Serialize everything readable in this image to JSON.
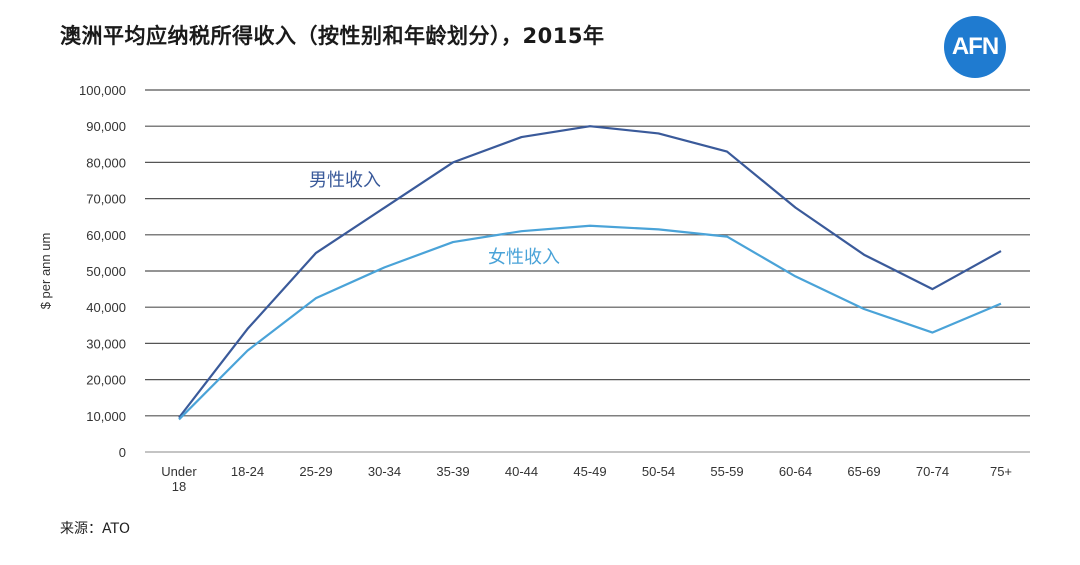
{
  "header": {
    "title": "澳洲平均应纳税所得收入（按性别和年龄划分），2015年",
    "logo_text": "AFN"
  },
  "footer": {
    "source": "来源：ATO"
  },
  "colors": {
    "male": "#3a5a9a",
    "female": "#4aa3d8",
    "grid": "#555555",
    "logo": "#1f7bd0"
  },
  "chart_data": {
    "type": "line",
    "title": "澳洲平均应纳税所得收入（按性别和年龄划分），2015年",
    "xlabel": "",
    "ylabel": "$ per ann um",
    "ylim": [
      0,
      100000
    ],
    "grid": true,
    "categories": [
      [
        "Under",
        "18"
      ],
      [
        "18-24"
      ],
      [
        "25-29"
      ],
      [
        "30-34"
      ],
      [
        "35-39"
      ],
      [
        "40-44"
      ],
      [
        "45-49"
      ],
      [
        "50-54"
      ],
      [
        "55-59"
      ],
      [
        "60-64"
      ],
      [
        "65-69"
      ],
      [
        "70-74"
      ],
      [
        "75+"
      ]
    ],
    "y_ticks": [
      "0",
      "10,000",
      "20,000",
      "30,000",
      "40,000",
      "50,000",
      "60,000",
      "70,000",
      "80,000",
      "90,000",
      "100,000"
    ],
    "series": [
      {
        "name": "男性收入",
        "color": "#3a5a9a",
        "values": [
          9500,
          34000,
          55000,
          67500,
          80000,
          87000,
          90000,
          88000,
          83000,
          67500,
          54500,
          45000,
          55500
        ]
      },
      {
        "name": "女性收入",
        "color": "#4aa3d8",
        "values": [
          9000,
          28000,
          42500,
          51000,
          58000,
          61000,
          62500,
          61500,
          59500,
          48500,
          39500,
          33000,
          41000
        ]
      }
    ]
  }
}
